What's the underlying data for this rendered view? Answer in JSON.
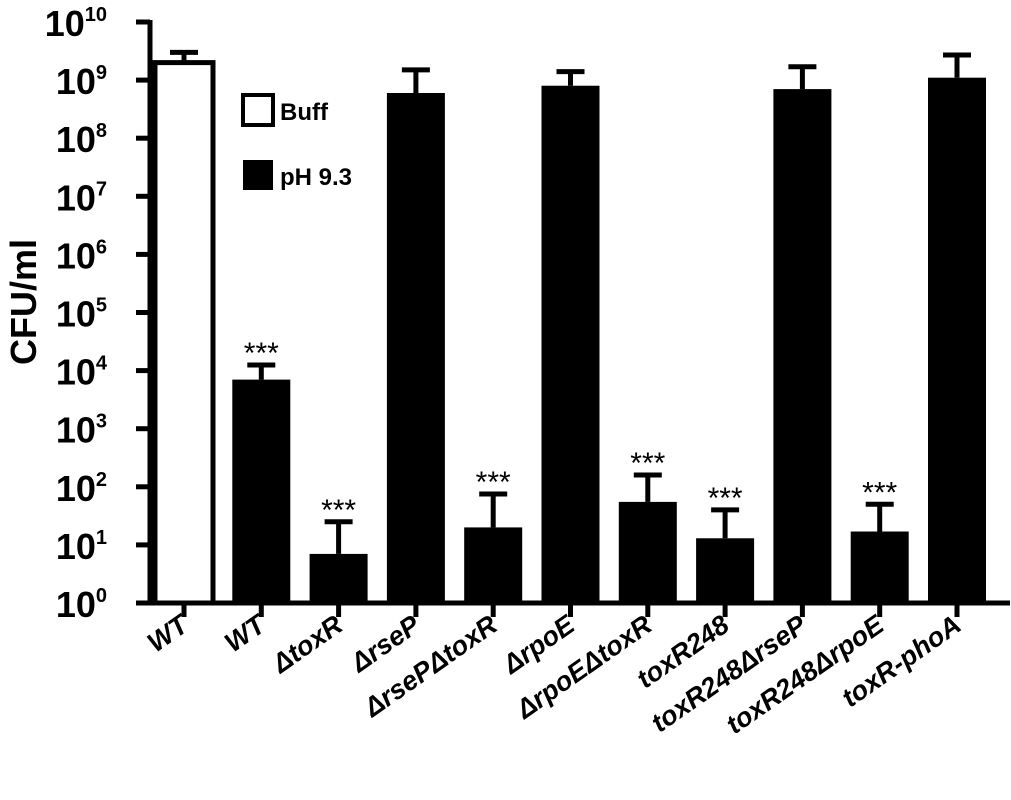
{
  "chart_data": {
    "type": "bar",
    "ylabel": "CFU/ml",
    "yscale": "log",
    "ylim": [
      1,
      10000000000
    ],
    "y_ticks": [
      {
        "base": "10",
        "exp": "0"
      },
      {
        "base": "10",
        "exp": "1"
      },
      {
        "base": "10",
        "exp": "2"
      },
      {
        "base": "10",
        "exp": "3"
      },
      {
        "base": "10",
        "exp": "4"
      },
      {
        "base": "10",
        "exp": "5"
      },
      {
        "base": "10",
        "exp": "6"
      },
      {
        "base": "10",
        "exp": "7"
      },
      {
        "base": "10",
        "exp": "8"
      },
      {
        "base": "10",
        "exp": "9"
      },
      {
        "base": "10",
        "exp": "10"
      }
    ],
    "legend": {
      "position": "top-left",
      "entries": [
        {
          "label": "Buff",
          "style": "open",
          "color": "#ffffff"
        },
        {
          "label": "pH 9.3",
          "style": "filled",
          "color": "#000000"
        }
      ]
    },
    "categories": [
      "WT",
      "WT",
      "ΔtoxR",
      "ΔrseP",
      "ΔrsePΔtoxR",
      "ΔrpoE",
      "ΔrpoEΔtoxR",
      "toxR248",
      "toxR248ΔrseP",
      "toxR248ΔrpoE",
      "toxR-phoA"
    ],
    "bars": [
      {
        "category": "WT",
        "condition": "Buff",
        "value": 2000000000,
        "error_upper": 3000000000,
        "significance": ""
      },
      {
        "category": "WT",
        "condition": "pH 9.3",
        "value": 7000,
        "error_upper": 12500,
        "significance": "***"
      },
      {
        "category": "ΔtoxR",
        "condition": "pH 9.3",
        "value": 7,
        "error_upper": 25,
        "significance": "***"
      },
      {
        "category": "ΔrseP",
        "condition": "pH 9.3",
        "value": 600000000,
        "error_upper": 1500000000,
        "significance": ""
      },
      {
        "category": "ΔrsePΔtoxR",
        "condition": "pH 9.3",
        "value": 20,
        "error_upper": 75,
        "significance": "***"
      },
      {
        "category": "ΔrpoE",
        "condition": "pH 9.3",
        "value": 800000000,
        "error_upper": 1400000000,
        "significance": ""
      },
      {
        "category": "ΔrpoEΔtoxR",
        "condition": "pH 9.3",
        "value": 55,
        "error_upper": 160,
        "significance": "***"
      },
      {
        "category": "toxR248",
        "condition": "pH 9.3",
        "value": 13,
        "error_upper": 40,
        "significance": "***"
      },
      {
        "category": "toxR248ΔrseP",
        "condition": "pH 9.3",
        "value": 700000000,
        "error_upper": 1700000000,
        "significance": ""
      },
      {
        "category": "toxR248ΔrpoE",
        "condition": "pH 9.3",
        "value": 17,
        "error_upper": 50,
        "significance": "***"
      },
      {
        "category": "toxR-phoA",
        "condition": "pH 9.3",
        "value": 1100000000,
        "error_upper": 2700000000,
        "significance": ""
      }
    ],
    "colors": {
      "filled": "#000000",
      "open": "#ffffff",
      "axis": "#000000"
    }
  }
}
